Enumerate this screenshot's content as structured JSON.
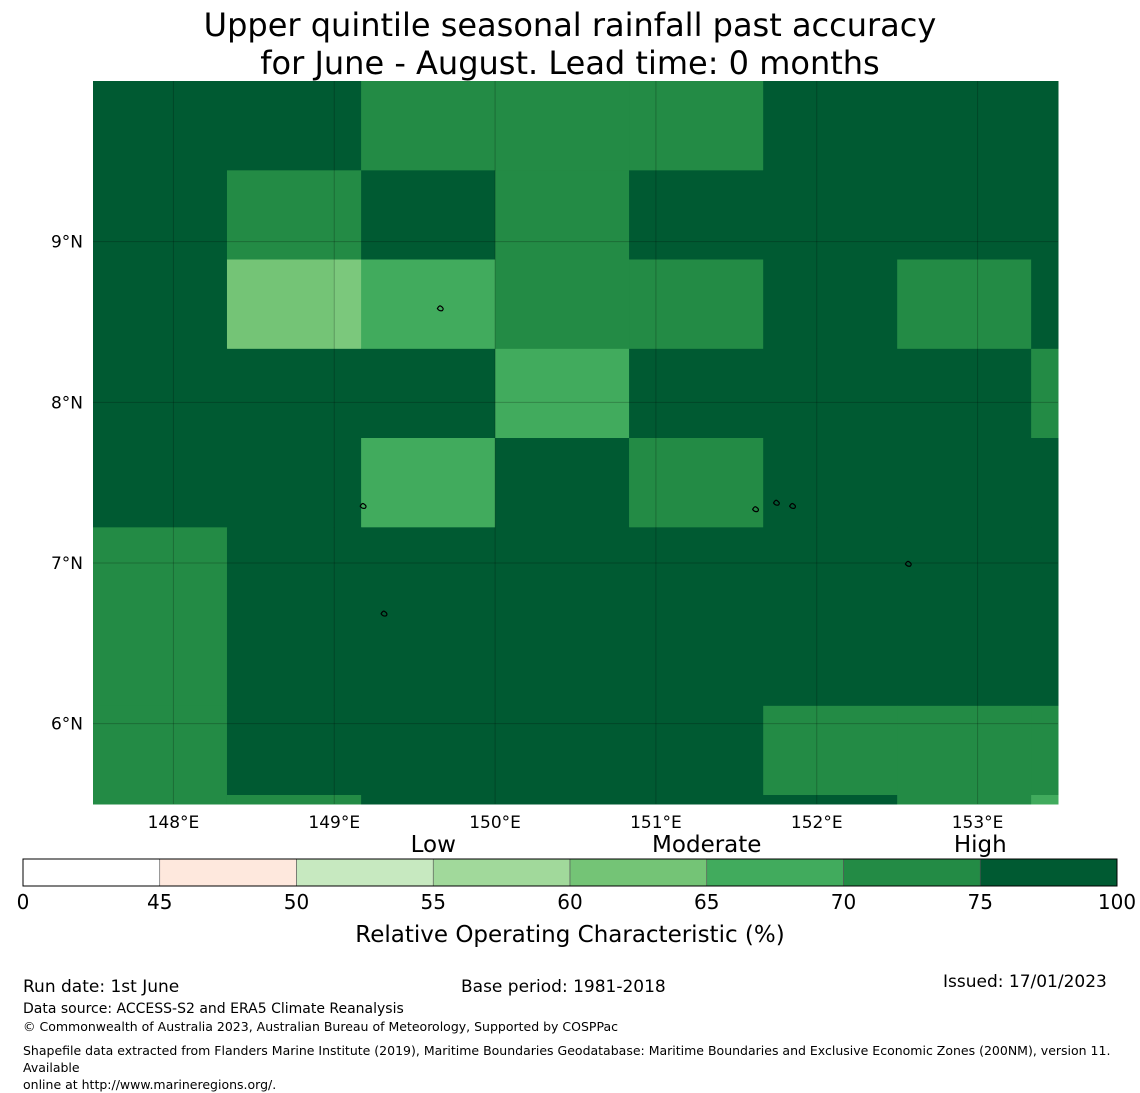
{
  "title": {
    "line1": "Upper quintile seasonal rainfall past accuracy",
    "line2": "for June - August. Lead time: 0 months"
  },
  "map": {
    "lon_range": [
      147.5,
      153.5
    ],
    "lat_range": [
      5.5,
      10.0
    ],
    "x_ticks": [
      "148°E",
      "149°E",
      "150°E",
      "151°E",
      "152°E",
      "153°E"
    ],
    "x_tick_values": [
      148,
      149,
      150,
      151,
      152,
      153
    ],
    "y_ticks": [
      "6°N",
      "7°N",
      "8°N",
      "9°N"
    ],
    "y_tick_values": [
      6,
      7,
      8,
      9
    ],
    "cell_lon_edges": [
      147.5,
      148.333,
      149.167,
      150.0,
      150.833,
      151.667,
      152.5,
      153.333,
      153.5
    ],
    "cell_lat_edges": [
      10.0,
      9.444,
      8.889,
      8.333,
      7.778,
      7.222,
      6.667,
      6.111,
      5.556,
      5.5
    ],
    "cell_colors_by_row": [
      [
        "#005a32",
        "#005a32",
        "#238b45",
        "#238b45",
        "#238b45",
        "#005a32",
        "#005a32",
        "#005a32"
      ],
      [
        "#005a32",
        "#238b45",
        "#005a32",
        "#238b45",
        "#005a32",
        "#005a32",
        "#005a32",
        "#005a32"
      ],
      [
        "#005a32",
        "#74c476",
        "#41ab5d",
        "#238b45",
        "#238b45",
        "#005a32",
        "#238b45",
        "#005a32"
      ],
      [
        "#005a32",
        "#005a32",
        "#005a32",
        "#41ab5d",
        "#005a32",
        "#005a32",
        "#005a32",
        "#238b45"
      ],
      [
        "#005a32",
        "#005a32",
        "#41ab5d",
        "#005a32",
        "#238b45",
        "#005a32",
        "#005a32",
        "#005a32"
      ],
      [
        "#238b45",
        "#005a32",
        "#005a32",
        "#005a32",
        "#005a32",
        "#005a32",
        "#005a32",
        "#005a32"
      ],
      [
        "#238b45",
        "#005a32",
        "#005a32",
        "#005a32",
        "#005a32",
        "#005a32",
        "#005a32",
        "#005a32"
      ],
      [
        "#238b45",
        "#005a32",
        "#005a32",
        "#005a32",
        "#005a32",
        "#238b45",
        "#238b45",
        "#238b45"
      ],
      [
        "#238b45",
        "#238b45",
        "#005a32",
        "#005a32",
        "#005a32",
        "#005a32",
        "#238b45",
        "#41ab5d"
      ]
    ],
    "light_cell_left_half_color": "#74c476",
    "light_cell_right_half_color": "#7bc87c",
    "islands": [
      {
        "lon": 149.66,
        "lat": 8.59
      },
      {
        "lon": 149.18,
        "lat": 7.36
      },
      {
        "lon": 151.62,
        "lat": 7.34
      },
      {
        "lon": 151.75,
        "lat": 7.38
      },
      {
        "lon": 151.85,
        "lat": 7.36
      },
      {
        "lon": 152.57,
        "lat": 7.0
      },
      {
        "lon": 149.31,
        "lat": 6.69
      }
    ]
  },
  "colorbar": {
    "category_labels": [
      "Low",
      "Moderate",
      "High"
    ],
    "tick_labels": [
      "0",
      "45",
      "50",
      "55",
      "60",
      "65",
      "70",
      "75",
      "100"
    ],
    "colors": [
      "#ffffff",
      "#fee8dd",
      "#c7e9c0",
      "#a1d99b",
      "#74c476",
      "#41ab5d",
      "#238b45",
      "#005a32"
    ],
    "label": "Relative Operating Characteristic (%)"
  },
  "footer": {
    "run_date": "Run date: 1st June",
    "base_period": "Base period: 1981-2018",
    "issued": "Issued: 17/01/2023",
    "data_source": "Data source: ACCESS-S2 and ERA5 Climate Reanalysis",
    "copyright": "© Commonwealth of Australia 2023, Australian Bureau of Meteorology, Supported by COSPPac",
    "shapefile_line1": "Shapefile data extracted from Flanders Marine Institute (2019), Maritime Boundaries Geodatabase: Maritime Boundaries and Exclusive Economic Zones (200NM), version 11. Available",
    "shapefile_line2": "online at http://www.marineregions.org/."
  }
}
